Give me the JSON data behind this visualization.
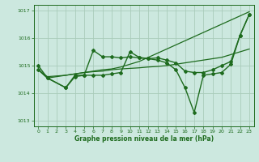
{
  "background_color": "#cce8df",
  "grid_color": "#aaccbb",
  "line_color": "#1e6b1e",
  "xlabel": "Graphe pression niveau de la mer (hPa)",
  "xlim": [
    -0.5,
    23.5
  ],
  "ylim": [
    1012.8,
    1017.2
  ],
  "yticks": [
    1013,
    1014,
    1015,
    1016,
    1017
  ],
  "xticks": [
    0,
    1,
    2,
    3,
    4,
    5,
    6,
    7,
    8,
    9,
    10,
    11,
    12,
    13,
    14,
    15,
    16,
    17,
    18,
    19,
    20,
    21,
    22,
    23
  ],
  "series": [
    {
      "x": [
        0,
        1,
        3,
        4,
        5,
        6,
        7,
        8,
        9,
        10,
        11,
        12,
        13,
        14,
        15,
        16,
        17,
        18,
        19,
        20,
        21,
        22,
        23
      ],
      "y": [
        1014.85,
        1014.6,
        1014.65,
        1014.7,
        1014.75,
        1014.78,
        1014.8,
        1014.85,
        1014.88,
        1014.9,
        1014.92,
        1014.95,
        1014.97,
        1015.0,
        1015.05,
        1015.1,
        1015.15,
        1015.2,
        1015.25,
        1015.3,
        1015.4,
        1015.5,
        1015.6
      ],
      "marker": null,
      "linewidth": 0.9
    },
    {
      "x": [
        0,
        1,
        3,
        4,
        5,
        6,
        7,
        8,
        9,
        10,
        11,
        12,
        13,
        14,
        15,
        16,
        17,
        18,
        19,
        20,
        21,
        22,
        23
      ],
      "y": [
        1015.0,
        1014.55,
        1014.2,
        1014.65,
        1014.65,
        1015.55,
        1015.32,
        1015.32,
        1015.28,
        1015.32,
        1015.28,
        1015.25,
        1015.28,
        1015.2,
        1015.1,
        1014.8,
        1014.75,
        1014.75,
        1014.85,
        1015.0,
        1015.15,
        1016.1,
        1016.85
      ],
      "marker": "D",
      "markersize": 2.0,
      "linewidth": 1.0
    },
    {
      "x": [
        0,
        1,
        3,
        4,
        5,
        6,
        7,
        8,
        9,
        10,
        11,
        12,
        13,
        14,
        15,
        16,
        17,
        18,
        19,
        20,
        21,
        22,
        23
      ],
      "y": [
        1014.85,
        1014.55,
        1014.2,
        1014.6,
        1014.65,
        1014.65,
        1014.65,
        1014.7,
        1014.75,
        1015.5,
        1015.3,
        1015.25,
        1015.2,
        1015.1,
        1014.85,
        1014.2,
        1013.3,
        1014.65,
        1014.7,
        1014.75,
        1015.05,
        1016.1,
        1016.85
      ],
      "marker": "D",
      "markersize": 2.0,
      "linewidth": 1.0
    },
    {
      "x": [
        0,
        1,
        3,
        4,
        5,
        6,
        7,
        8,
        9,
        10,
        11,
        12,
        13,
        14,
        15,
        16,
        17,
        18,
        19,
        20,
        21,
        22,
        23
      ],
      "y": [
        1014.85,
        1014.55,
        1014.65,
        1014.7,
        1014.75,
        1014.8,
        1014.85,
        1014.88,
        1014.95,
        1015.05,
        1015.15,
        1015.3,
        1015.45,
        1015.6,
        1015.75,
        1015.9,
        1016.05,
        1016.2,
        1016.35,
        1016.5,
        1016.65,
        1016.8,
        1016.95
      ],
      "marker": null,
      "linewidth": 0.9
    }
  ]
}
